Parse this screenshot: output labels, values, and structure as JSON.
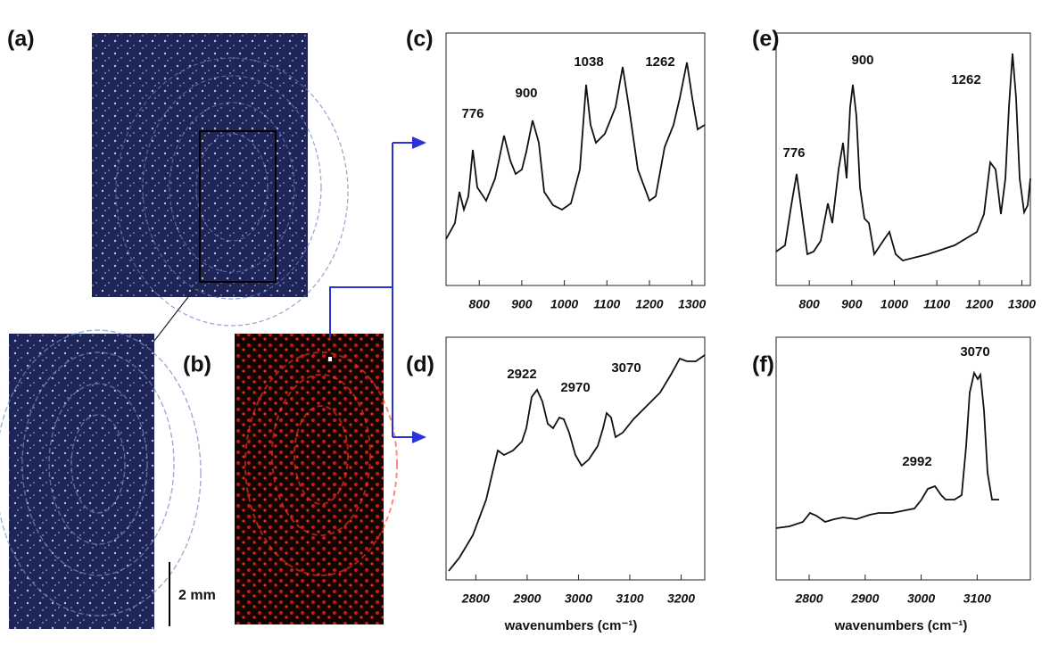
{
  "image_labels": {
    "a": "(a)",
    "b": "(b)"
  },
  "scale_bar": "2 mm",
  "spectra": [
    {
      "label": "(c)",
      "xlim": [
        722,
        1330
      ],
      "xticks": [
        800,
        900,
        1000,
        1100,
        1200,
        1300
      ],
      "peaks": [
        "776",
        "900",
        "1038",
        "1262"
      ]
    },
    {
      "label": "(d)",
      "xlim": [
        2742,
        3246
      ],
      "xticks": [
        2800,
        2900,
        3000,
        3100,
        3200
      ],
      "peaks": [
        "2922",
        "2970",
        "3070"
      ],
      "xlabel": "wavenumbers  (cm⁻¹)"
    },
    {
      "label": "(e)",
      "xlim": [
        722,
        1320
      ],
      "xticks": [
        800,
        900,
        1000,
        1100,
        1200,
        1300
      ],
      "peaks": [
        "776",
        "900",
        "1262"
      ]
    },
    {
      "label": "(f)",
      "xlim": [
        2741,
        3195
      ],
      "xticks": [
        2800,
        2900,
        3000,
        3100
      ],
      "peaks": [
        "2992",
        "3070"
      ],
      "xlabel": "wavenumbers  (cm⁻¹)"
    }
  ]
}
